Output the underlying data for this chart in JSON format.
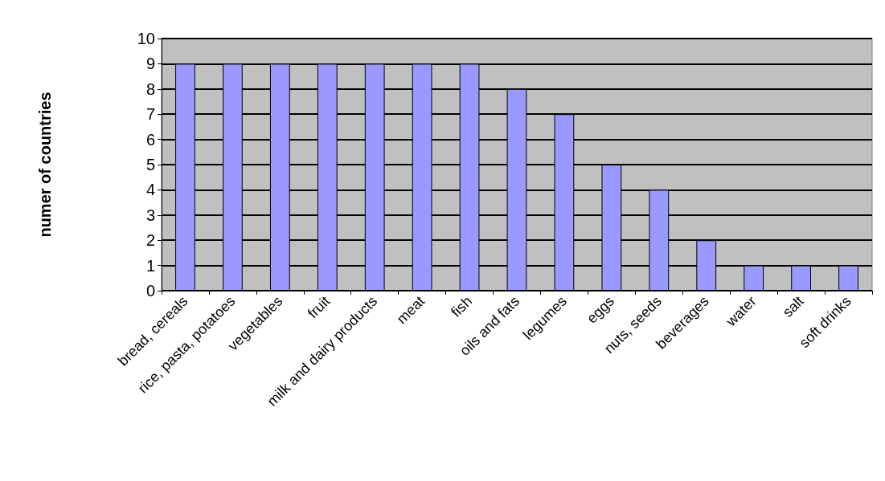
{
  "chart_data": {
    "type": "bar",
    "ylabel": "numer of countries",
    "categories": [
      "bread, cereals",
      "rice, pasta, potatoes",
      "vegetables",
      "fruit",
      "milk and dairy products",
      "meat",
      "fish",
      "oils and fats",
      "legumes",
      "eggs",
      "nuts, seeds",
      "beverages",
      "water",
      "salt",
      "soft drinks"
    ],
    "values": [
      9,
      9,
      9,
      9,
      9,
      9,
      9,
      8,
      7,
      5,
      4,
      2,
      1,
      1,
      1
    ],
    "color": "#9999ff",
    "ylim": [
      0,
      10
    ],
    "yticks": [
      0,
      1,
      2,
      3,
      4,
      5,
      6,
      7,
      8,
      9,
      10
    ],
    "grid": "y"
  }
}
